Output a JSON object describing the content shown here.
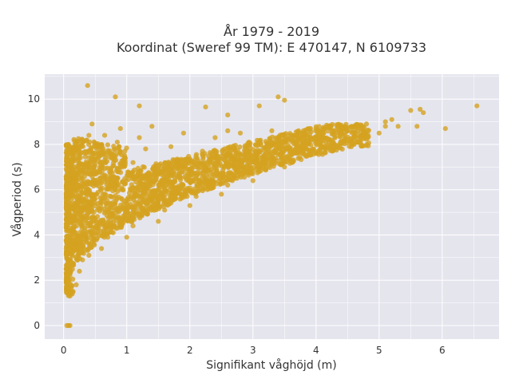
{
  "chart_data": {
    "type": "scatter",
    "title_lines": [
      "År 1979 - 2019",
      "Koordinat (Sweref 99 TM): E 470147, N 6109733"
    ],
    "xlabel": "Signifikant våghöjd (m)",
    "ylabel": "Vågperiod (s)",
    "xlim": [
      -0.3,
      6.9
    ],
    "ylim": [
      -0.6,
      11.1
    ],
    "xticks": [
      0,
      1,
      2,
      3,
      4,
      5,
      6
    ],
    "yticks": [
      0,
      2,
      4,
      6,
      8,
      10
    ],
    "grid": true,
    "marker_color": "#d4a320",
    "background_color": "#e5e5ee",
    "series": [
      {
        "points": [
          [
            0.05,
            0.0
          ],
          [
            0.08,
            0.0
          ],
          [
            0.1,
            0.0
          ],
          [
            0.05,
            1.6
          ],
          [
            0.08,
            1.4
          ],
          [
            0.1,
            1.3
          ],
          [
            0.15,
            1.5
          ],
          [
            0.05,
            2.0
          ],
          [
            0.1,
            2.3
          ],
          [
            0.12,
            2.8
          ],
          [
            0.06,
            3.2
          ],
          [
            0.08,
            3.8
          ],
          [
            0.1,
            4.3
          ],
          [
            0.12,
            4.8
          ],
          [
            0.08,
            5.3
          ],
          [
            0.1,
            5.8
          ],
          [
            0.08,
            6.3
          ],
          [
            0.1,
            6.8
          ],
          [
            0.12,
            7.3
          ],
          [
            0.08,
            7.8
          ],
          [
            0.2,
            1.8
          ],
          [
            0.25,
            2.4
          ],
          [
            0.3,
            2.9
          ],
          [
            0.25,
            3.6
          ],
          [
            0.3,
            4.1
          ],
          [
            0.22,
            4.6
          ],
          [
            0.3,
            5.1
          ],
          [
            0.25,
            5.6
          ],
          [
            0.3,
            6.1
          ],
          [
            0.28,
            6.6
          ],
          [
            0.3,
            7.1
          ],
          [
            0.35,
            7.6
          ],
          [
            0.3,
            8.1
          ],
          [
            0.4,
            8.4
          ],
          [
            0.45,
            8.9
          ],
          [
            0.4,
            3.1
          ],
          [
            0.45,
            3.7
          ],
          [
            0.5,
            4.3
          ],
          [
            0.48,
            5.0
          ],
          [
            0.5,
            5.6
          ],
          [
            0.52,
            6.2
          ],
          [
            0.55,
            6.8
          ],
          [
            0.55,
            7.4
          ],
          [
            0.6,
            7.9
          ],
          [
            0.65,
            8.4
          ],
          [
            0.6,
            3.4
          ],
          [
            0.7,
            3.9
          ],
          [
            0.75,
            4.5
          ],
          [
            0.7,
            5.1
          ],
          [
            0.75,
            5.7
          ],
          [
            0.8,
            6.3
          ],
          [
            0.75,
            6.9
          ],
          [
            0.8,
            7.5
          ],
          [
            0.85,
            8.1
          ],
          [
            0.9,
            8.7
          ],
          [
            1.0,
            3.9
          ],
          [
            1.1,
            4.4
          ],
          [
            1.0,
            5.0
          ],
          [
            1.2,
            5.5
          ],
          [
            1.1,
            6.1
          ],
          [
            1.2,
            6.6
          ],
          [
            1.1,
            7.2
          ],
          [
            1.3,
            7.8
          ],
          [
            1.2,
            8.3
          ],
          [
            1.4,
            8.8
          ],
          [
            1.5,
            4.6
          ],
          [
            1.6,
            5.1
          ],
          [
            1.5,
            5.7
          ],
          [
            1.7,
            6.2
          ],
          [
            1.6,
            6.8
          ],
          [
            1.8,
            7.3
          ],
          [
            1.7,
            7.9
          ],
          [
            1.9,
            8.5
          ],
          [
            2.0,
            5.3
          ],
          [
            2.1,
            5.7
          ],
          [
            2.2,
            6.2
          ],
          [
            2.1,
            6.7
          ],
          [
            2.3,
            7.2
          ],
          [
            2.2,
            7.7
          ],
          [
            2.4,
            8.3
          ],
          [
            2.6,
            8.6
          ],
          [
            2.5,
            5.8
          ],
          [
            2.6,
            6.2
          ],
          [
            2.7,
            6.6
          ],
          [
            2.8,
            7.0
          ],
          [
            2.7,
            7.5
          ],
          [
            2.9,
            7.9
          ],
          [
            2.8,
            8.5
          ],
          [
            3.0,
            6.4
          ],
          [
            3.1,
            6.8
          ],
          [
            3.2,
            7.1
          ],
          [
            3.3,
            7.4
          ],
          [
            3.2,
            7.8
          ],
          [
            3.4,
            8.1
          ],
          [
            3.3,
            8.6
          ],
          [
            3.5,
            7.0
          ],
          [
            3.6,
            7.3
          ],
          [
            3.7,
            7.6
          ],
          [
            3.8,
            7.8
          ],
          [
            3.7,
            8.1
          ],
          [
            3.9,
            8.3
          ],
          [
            3.8,
            8.6
          ],
          [
            4.0,
            7.6
          ],
          [
            4.1,
            7.9
          ],
          [
            4.2,
            8.1
          ],
          [
            4.3,
            8.3
          ],
          [
            4.4,
            8.5
          ],
          [
            4.5,
            8.6
          ],
          [
            4.6,
            8.8
          ],
          [
            4.7,
            8.7
          ],
          [
            4.8,
            8.9
          ],
          [
            5.1,
            9.0
          ],
          [
            5.2,
            9.1
          ],
          [
            5.0,
            8.5
          ],
          [
            5.1,
            8.8
          ],
          [
            5.3,
            8.8
          ],
          [
            5.5,
            9.5
          ],
          [
            5.65,
            9.55
          ],
          [
            5.7,
            9.4
          ],
          [
            5.6,
            8.8
          ],
          [
            6.05,
            8.7
          ],
          [
            6.55,
            9.7
          ],
          [
            0.38,
            10.6
          ],
          [
            0.82,
            10.1
          ],
          [
            3.4,
            10.1
          ],
          [
            3.5,
            9.95
          ],
          [
            3.1,
            9.7
          ],
          [
            2.6,
            9.3
          ],
          [
            1.2,
            9.7
          ],
          [
            2.25,
            9.65
          ]
        ]
      }
    ]
  }
}
